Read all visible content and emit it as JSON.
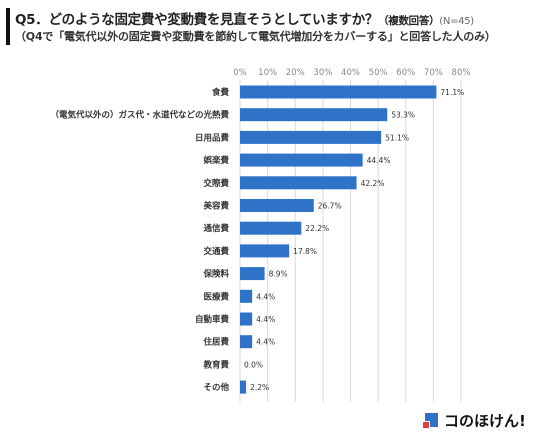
{
  "title": {
    "main": "Q5．どのような固定費や変動費を見直そうとしていますか？",
    "qualifier": "（複数回答）",
    "sample": "(N=45)",
    "subtitle": "（Q4で「電気代以外の固定費や変動費を節約して電気代増加分をカバーする」と回答した人のみ）"
  },
  "logo": {
    "text": "コのほけん!"
  },
  "colors": {
    "bar": "#2f73c9",
    "grid": "#d9d9d9",
    "tick": "#888888",
    "label": "#333333"
  },
  "chart_data": {
    "type": "bar",
    "orientation": "horizontal",
    "categories": [
      "食費",
      "（電気代以外の）ガス代・水道代などの光熱費",
      "日用品費",
      "娯楽費",
      "交際費",
      "美容費",
      "通信費",
      "交通費",
      "保険料",
      "医療費",
      "自動車費",
      "住居費",
      "教育費",
      "その他"
    ],
    "values": [
      71.1,
      53.3,
      51.1,
      44.4,
      42.2,
      26.7,
      22.2,
      17.8,
      8.9,
      4.4,
      4.4,
      4.4,
      0.0,
      2.2
    ],
    "value_labels": [
      "71.1%",
      "53.3%",
      "51.1%",
      "44.4%",
      "42.2%",
      "26.7%",
      "22.2%",
      "17.8%",
      "8.9%",
      "4.4%",
      "4.4%",
      "4.4%",
      "0.0%",
      "2.2%"
    ],
    "xlim": [
      0,
      80
    ],
    "ticks": [
      0,
      10,
      20,
      30,
      40,
      50,
      60,
      70,
      80
    ],
    "tick_labels": [
      "0%",
      "10%",
      "20%",
      "30%",
      "40%",
      "50%",
      "60%",
      "70%",
      "80%"
    ],
    "axis_position": "top",
    "grid": true,
    "legend": "none"
  }
}
